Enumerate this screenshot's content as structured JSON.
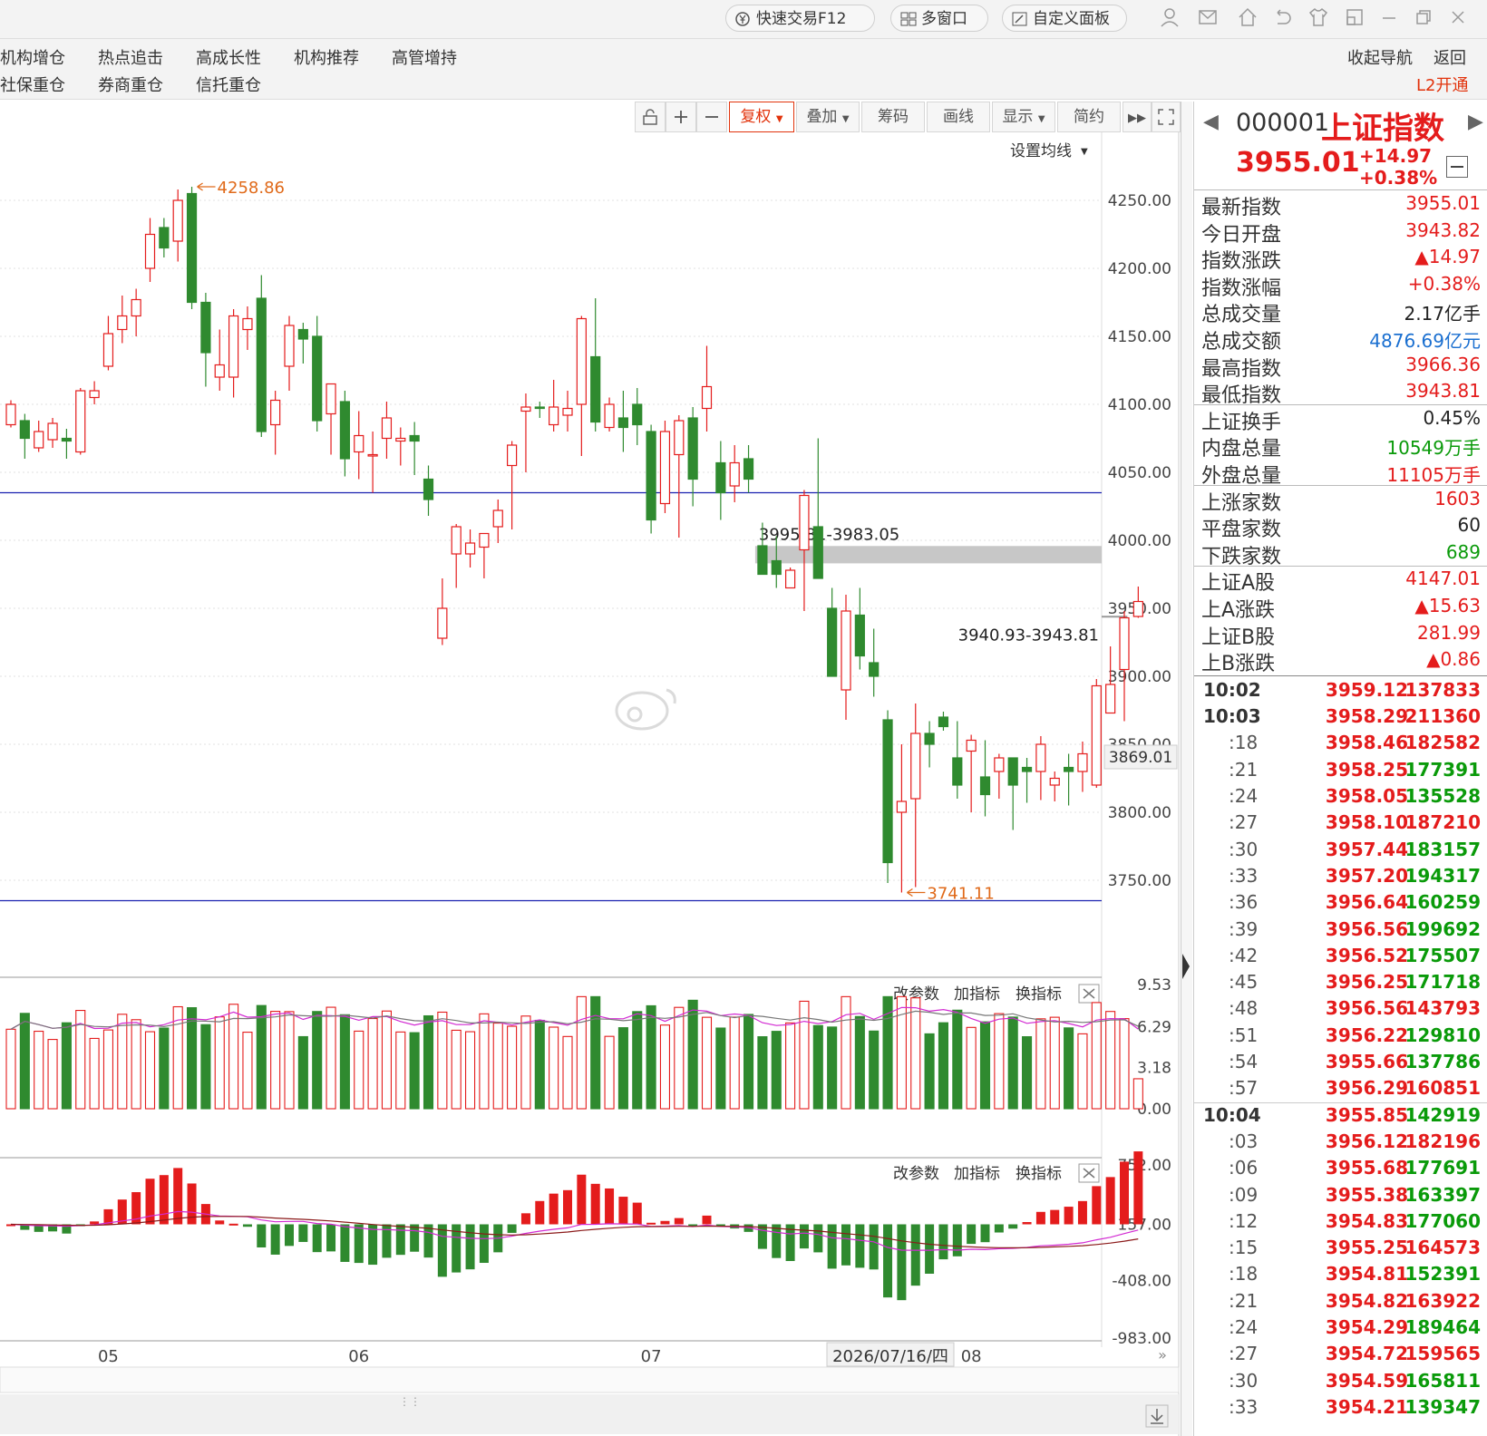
{
  "topbar": {
    "quick_trade": "快速交易F12",
    "multi_window": "多窗口",
    "custom_panel": "自定义面板"
  },
  "nav": {
    "row1": [
      "机构增仓",
      "热点追击",
      "高成长性",
      "机构推荐",
      "高管增持"
    ],
    "row2": [
      "社保重仓",
      "券商重仓",
      "信托重仓"
    ],
    "collapse": "收起导航",
    "back": "返回",
    "l2": "L2开通"
  },
  "toolbar": {
    "fuquan": "复权",
    "overlay": "叠加",
    "chips": "筹码",
    "draw": "画线",
    "display": "显示",
    "simple": "简约",
    "set_ma": "设置均线"
  },
  "indicator_panel": {
    "modify": "改参数",
    "add": "加指标",
    "switch": "换指标"
  },
  "stock": {
    "code": "000001",
    "name": "上证指数",
    "price": "3955.01",
    "change": "+14.97",
    "change_pct": "+0.38%"
  },
  "quote": [
    {
      "label": "最新指数",
      "value": "3955.01",
      "color": "red"
    },
    {
      "label": "今日开盘",
      "value": "3943.82",
      "color": "red"
    },
    {
      "label": "指数涨跌",
      "value": "▲14.97",
      "color": "red"
    },
    {
      "label": "指数涨幅",
      "value": "+0.38%",
      "color": "red"
    },
    {
      "label": "总成交量",
      "value": "2.17亿手",
      "color": "dark"
    },
    {
      "label": "总成交额",
      "value": "4876.69亿元",
      "color": "blue"
    },
    {
      "label": "最高指数",
      "value": "3966.36",
      "color": "red"
    },
    {
      "label": "最低指数",
      "value": "3943.81",
      "color": "red"
    },
    {
      "label": "上证换手",
      "value": "0.45%",
      "color": "dark"
    },
    {
      "label": "内盘总量",
      "value": "10549万手",
      "color": "green"
    },
    {
      "label": "外盘总量",
      "value": "11105万手",
      "color": "red"
    },
    {
      "label": "上涨家数",
      "value": "1603",
      "color": "red"
    },
    {
      "label": "平盘家数",
      "value": "60",
      "color": "dark"
    },
    {
      "label": "下跌家数",
      "value": "689",
      "color": "green"
    },
    {
      "label": "上证A股",
      "value": "4147.01",
      "color": "red"
    },
    {
      "label": "上A涨跌",
      "value": "▲15.63",
      "color": "red"
    },
    {
      "label": "上证B股",
      "value": "281.99",
      "color": "red"
    },
    {
      "label": "上B涨跌",
      "value": "▲0.86",
      "color": "red"
    }
  ],
  "ticks": [
    {
      "time": "10:02",
      "price": "3959.12",
      "vol": "137833",
      "color": "red"
    },
    {
      "time": "10:03",
      "price": "3958.29",
      "vol": "211360",
      "color": "red"
    },
    {
      "time": ":18",
      "price": "3958.46",
      "vol": "182582",
      "color": "red"
    },
    {
      "time": ":21",
      "price": "3958.25",
      "vol": "177391",
      "color": "green"
    },
    {
      "time": ":24",
      "price": "3958.05",
      "vol": "135528",
      "color": "green"
    },
    {
      "time": ":27",
      "price": "3958.10",
      "vol": "187210",
      "color": "red"
    },
    {
      "time": ":30",
      "price": "3957.44",
      "vol": "183157",
      "color": "green"
    },
    {
      "time": ":33",
      "price": "3957.20",
      "vol": "194317",
      "color": "green"
    },
    {
      "time": ":36",
      "price": "3956.64",
      "vol": "160259",
      "color": "green"
    },
    {
      "time": ":39",
      "price": "3956.56",
      "vol": "199692",
      "color": "green"
    },
    {
      "time": ":42",
      "price": "3956.52",
      "vol": "175507",
      "color": "green"
    },
    {
      "time": ":45",
      "price": "3956.25",
      "vol": "171718",
      "color": "green"
    },
    {
      "time": ":48",
      "price": "3956.56",
      "vol": "143793",
      "color": "red"
    },
    {
      "time": ":51",
      "price": "3956.22",
      "vol": "129810",
      "color": "green"
    },
    {
      "time": ":54",
      "price": "3955.66",
      "vol": "137786",
      "color": "green"
    },
    {
      "time": ":57",
      "price": "3956.29",
      "vol": "160851",
      "color": "red"
    },
    {
      "time": "10:04",
      "price": "3955.85",
      "vol": "142919",
      "color": "green"
    },
    {
      "time": ":03",
      "price": "3956.12",
      "vol": "182196",
      "color": "red"
    },
    {
      "time": ":06",
      "price": "3955.68",
      "vol": "177691",
      "color": "green"
    },
    {
      "time": ":09",
      "price": "3955.38",
      "vol": "163397",
      "color": "green"
    },
    {
      "time": ":12",
      "price": "3954.83",
      "vol": "177060",
      "color": "green"
    },
    {
      "time": ":15",
      "price": "3955.25",
      "vol": "164573",
      "color": "red"
    },
    {
      "time": ":18",
      "price": "3954.81",
      "vol": "152391",
      "color": "green"
    },
    {
      "time": ":21",
      "price": "3954.82",
      "vol": "163922",
      "color": "red"
    },
    {
      "time": ":24",
      "price": "3954.29",
      "vol": "189464",
      "color": "green"
    },
    {
      "time": ":27",
      "price": "3954.72",
      "vol": "159565",
      "color": "red"
    },
    {
      "time": ":30",
      "price": "3954.59",
      "vol": "165811",
      "color": "green"
    },
    {
      "time": ":33",
      "price": "3954.21",
      "vol": "139347",
      "color": "green"
    }
  ],
  "chart_data": {
    "type": "candlestick",
    "price_axis": {
      "ylim": [
        3700,
        4300
      ],
      "ticks": [
        "4250.00",
        "4200.00",
        "4150.00",
        "4100.00",
        "4050.00",
        "4000.00",
        "3950.00",
        "3900.00",
        "3850.00",
        "3800.00",
        "3750.00"
      ],
      "tick_values": [
        4250,
        4200,
        4150,
        4100,
        4050,
        4000,
        3950,
        3900,
        3850,
        3800,
        3750
      ],
      "crosshair_value": "3869.01"
    },
    "x_labels": [
      {
        "label": "05",
        "index": 7
      },
      {
        "label": "06",
        "index": 25
      },
      {
        "label": "07",
        "index": 46
      },
      {
        "label": "08",
        "index": 69
      }
    ],
    "cursor_date": "2026/07/16/四",
    "annotations": {
      "high": "4258.86",
      "low": "3741.11",
      "gap_upper": "3995.81-3983.05",
      "gap_lower": "3940.93-3943.81"
    },
    "gap_zones": [
      {
        "low": 3983.05,
        "high": 3995.81,
        "label_key": "gap_upper"
      },
      {
        "low": 3940.93,
        "high": 3943.81,
        "label_key": "gap_lower"
      }
    ],
    "reference_lines": [
      4035,
      3735
    ],
    "candles": [
      [
        4085,
        4100,
        4103,
        4083
      ],
      [
        4088,
        4075,
        4093,
        4060
      ],
      [
        4068,
        4080,
        4088,
        4065
      ],
      [
        4074,
        4086,
        4090,
        4068
      ],
      [
        4075,
        4073,
        4082,
        4060
      ],
      [
        4065,
        4110,
        4112,
        4063
      ],
      [
        4105,
        4110,
        4117,
        4100
      ],
      [
        4128,
        4152,
        4165,
        4125
      ],
      [
        4155,
        4165,
        4180,
        4145
      ],
      [
        4165,
        4177,
        4185,
        4150
      ],
      [
        4200,
        4225,
        4237,
        4190
      ],
      [
        4230,
        4215,
        4237,
        4208
      ],
      [
        4220,
        4250,
        4258,
        4205
      ],
      [
        4255,
        4175,
        4260,
        4170
      ],
      [
        4175,
        4138,
        4182,
        4113
      ],
      [
        4120,
        4129,
        4155,
        4110
      ],
      [
        4120,
        4165,
        4170,
        4105
      ],
      [
        4155,
        4163,
        4172,
        4140
      ],
      [
        4178,
        4080,
        4195,
        4076
      ],
      [
        4085,
        4103,
        4110,
        4063
      ],
      [
        4128,
        4158,
        4165,
        4110
      ],
      [
        4155,
        4148,
        4160,
        4130
      ],
      [
        4150,
        4088,
        4165,
        4080
      ],
      [
        4093,
        4115,
        4115,
        4063
      ],
      [
        4102,
        4060,
        4110,
        4047
      ],
      [
        4065,
        4077,
        4095,
        4045
      ],
      [
        4062,
        4063,
        4080,
        4035
      ],
      [
        4075,
        4090,
        4102,
        4060
      ],
      [
        4073,
        4075,
        4083,
        4055
      ],
      [
        4077,
        4073,
        4087,
        4048
      ],
      [
        4045,
        4030,
        4055,
        4018
      ],
      [
        3928,
        3950,
        3972,
        3923
      ],
      [
        3990,
        4010,
        4012,
        3965
      ],
      [
        3990,
        3998,
        4008,
        3980
      ],
      [
        3995,
        4005,
        4005,
        3972
      ],
      [
        4010,
        4022,
        4030,
        3998
      ],
      [
        4055,
        4070,
        4073,
        4008
      ],
      [
        4095,
        4098,
        4108,
        4050
      ],
      [
        4098,
        4097,
        4102,
        4090
      ],
      [
        4085,
        4098,
        4118,
        4080
      ],
      [
        4092,
        4097,
        4110,
        4080
      ],
      [
        4100,
        4163,
        4165,
        4062
      ],
      [
        4135,
        4087,
        4178,
        4080
      ],
      [
        4083,
        4100,
        4105,
        4080
      ],
      [
        4090,
        4083,
        4110,
        4065
      ],
      [
        4100,
        4085,
        4112,
        4070
      ],
      [
        4080,
        4015,
        4085,
        4005
      ],
      [
        4027,
        4080,
        4088,
        4020
      ],
      [
        4063,
        4088,
        4092,
        4002
      ],
      [
        4090,
        4045,
        4098,
        4025
      ],
      [
        4097,
        4113,
        4143,
        4080
      ],
      [
        4057,
        4035,
        4073,
        4015
      ],
      [
        4040,
        4057,
        4070,
        4028
      ],
      [
        4060,
        4045,
        4070,
        4035
      ],
      [
        3996,
        3975,
        4013,
        3993
      ],
      [
        3985,
        3975,
        4003,
        3965
      ],
      [
        3965,
        3978,
        3980,
        3970
      ],
      [
        3993,
        4033,
        4037,
        3948
      ],
      [
        4010,
        3972,
        4075,
        4010
      ],
      [
        3950,
        3900,
        3965,
        3930
      ],
      [
        3890,
        3948,
        3960,
        3868
      ],
      [
        3945,
        3915,
        3965,
        3905
      ],
      [
        3910,
        3900,
        3935,
        3885
      ],
      [
        3868,
        3763,
        3875,
        3748
      ],
      [
        3800,
        3808,
        3850,
        3741
      ],
      [
        3810,
        3858,
        3880,
        3745
      ],
      [
        3858,
        3850,
        3867,
        3833
      ],
      [
        3870,
        3863,
        3874,
        3860
      ],
      [
        3840,
        3820,
        3867,
        3810
      ],
      [
        3845,
        3853,
        3857,
        3800
      ],
      [
        3826,
        3813,
        3853,
        3797
      ],
      [
        3830,
        3840,
        3843,
        3810
      ],
      [
        3840,
        3820,
        3840,
        3787
      ],
      [
        3833,
        3830,
        3840,
        3807
      ],
      [
        3830,
        3850,
        3856,
        3809
      ],
      [
        3820,
        3825,
        3830,
        3808
      ],
      [
        3833,
        3830,
        3843,
        3805
      ],
      [
        3830,
        3843,
        3852,
        3815
      ],
      [
        3820,
        3893,
        3898,
        3818
      ],
      [
        3873,
        3894,
        3922,
        3873
      ],
      [
        3905,
        3943,
        3948,
        3867
      ],
      [
        3944,
        3955,
        3966,
        3943
      ]
    ],
    "volume_panel": {
      "ticks": [
        "9.53",
        "6.29",
        "3.18",
        "0.00"
      ],
      "tick_values": [
        9.53,
        6.29,
        3.18,
        0
      ],
      "ylim": [
        0,
        9.53
      ],
      "ma_lines": [
        "#d22ad2",
        "#777777"
      ]
    },
    "macd_panel": {
      "ticks": [
        "752.00",
        "157.00",
        "-408.00",
        "-983.00"
      ],
      "tick_values": [
        752,
        157,
        -408,
        -983
      ],
      "ylim": [
        -983,
        752
      ],
      "bar_colors": [
        "#e41c1c",
        "#2f8a2f"
      ],
      "line_colors": [
        "#d22ad2",
        "#8b1a1a"
      ]
    }
  }
}
